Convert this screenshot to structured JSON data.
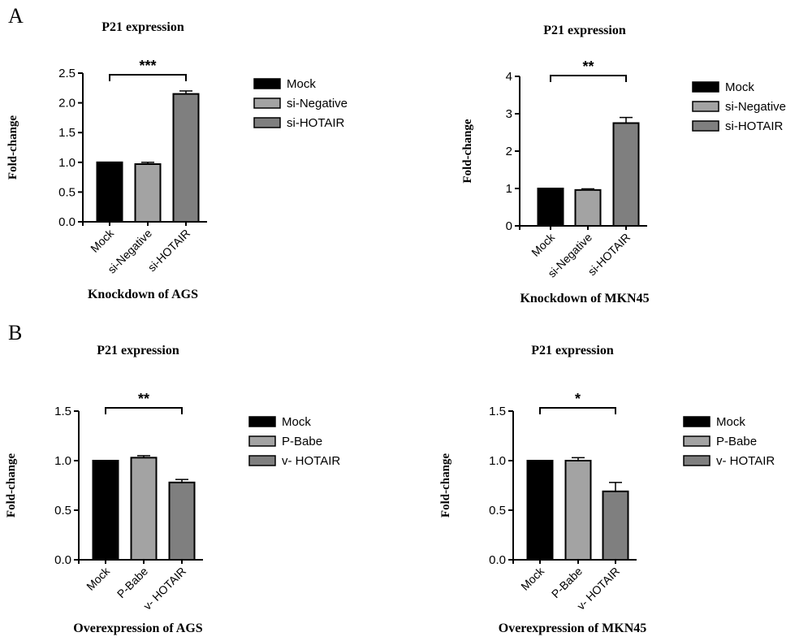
{
  "panels": {
    "a": "A",
    "b": "B"
  },
  "chart_data": [
    {
      "type": "bar",
      "title": "P21 expression",
      "ylabel": "Fold-change",
      "xlabel": "Knockdown of AGS",
      "categories": [
        "Mock",
        "si-Negative",
        "si-HOTAIR"
      ],
      "values": [
        1.0,
        0.97,
        2.15
      ],
      "errors": [
        0,
        0.03,
        0.05
      ],
      "ylim": [
        0,
        2.5
      ],
      "yticks": [
        "0.0",
        "0.5",
        "1.0",
        "1.5",
        "2.0",
        "2.5"
      ],
      "significance": "***",
      "colors": [
        "#000000",
        "#a3a3a3",
        "#7f7f7f"
      ],
      "legend": [
        "Mock",
        "si-Negative",
        "si-HOTAIR"
      ],
      "legend_position": "right",
      "grid": false
    },
    {
      "type": "bar",
      "title": "P21 expression",
      "ylabel": "Fold-change",
      "xlabel": "Knockdown of MKN45",
      "categories": [
        "Mock",
        "si-Negative",
        "si-HOTAIR"
      ],
      "values": [
        1.0,
        0.96,
        2.75
      ],
      "errors": [
        0,
        0.03,
        0.15
      ],
      "ylim": [
        0,
        4
      ],
      "yticks": [
        "0",
        "1",
        "2",
        "3",
        "4"
      ],
      "significance": "**",
      "colors": [
        "#000000",
        "#a3a3a3",
        "#7f7f7f"
      ],
      "legend": [
        "Mock",
        "si-Negative",
        "si-HOTAIR"
      ],
      "legend_position": "right",
      "grid": false
    },
    {
      "type": "bar",
      "title": "P21 expression",
      "ylabel": "Fold-change",
      "xlabel": "Overexpression of AGS",
      "categories": [
        "Mock",
        "P-Babe",
        "v- HOTAIR"
      ],
      "values": [
        1.0,
        1.03,
        0.78
      ],
      "errors": [
        0,
        0.02,
        0.03
      ],
      "ylim": [
        0,
        1.5
      ],
      "yticks": [
        "0.0",
        "0.5",
        "1.0",
        "1.5"
      ],
      "significance": "**",
      "colors": [
        "#000000",
        "#a3a3a3",
        "#7f7f7f"
      ],
      "legend": [
        "Mock",
        "P-Babe",
        "v- HOTAIR"
      ],
      "legend_position": "right",
      "grid": false
    },
    {
      "type": "bar",
      "title": "P21 expression",
      "ylabel": "Fold-change",
      "xlabel": "Overexpression of MKN45",
      "categories": [
        "Mock",
        "P-Babe",
        "v- HOTAIR"
      ],
      "values": [
        1.0,
        1.0,
        0.69
      ],
      "errors": [
        0,
        0.03,
        0.09
      ],
      "ylim": [
        0,
        1.5
      ],
      "yticks": [
        "0.0",
        "0.5",
        "1.0",
        "1.5"
      ],
      "significance": "*",
      "colors": [
        "#000000",
        "#a3a3a3",
        "#7f7f7f"
      ],
      "legend": [
        "Mock",
        "P-Babe",
        "v- HOTAIR"
      ],
      "legend_position": "right",
      "grid": false
    }
  ]
}
